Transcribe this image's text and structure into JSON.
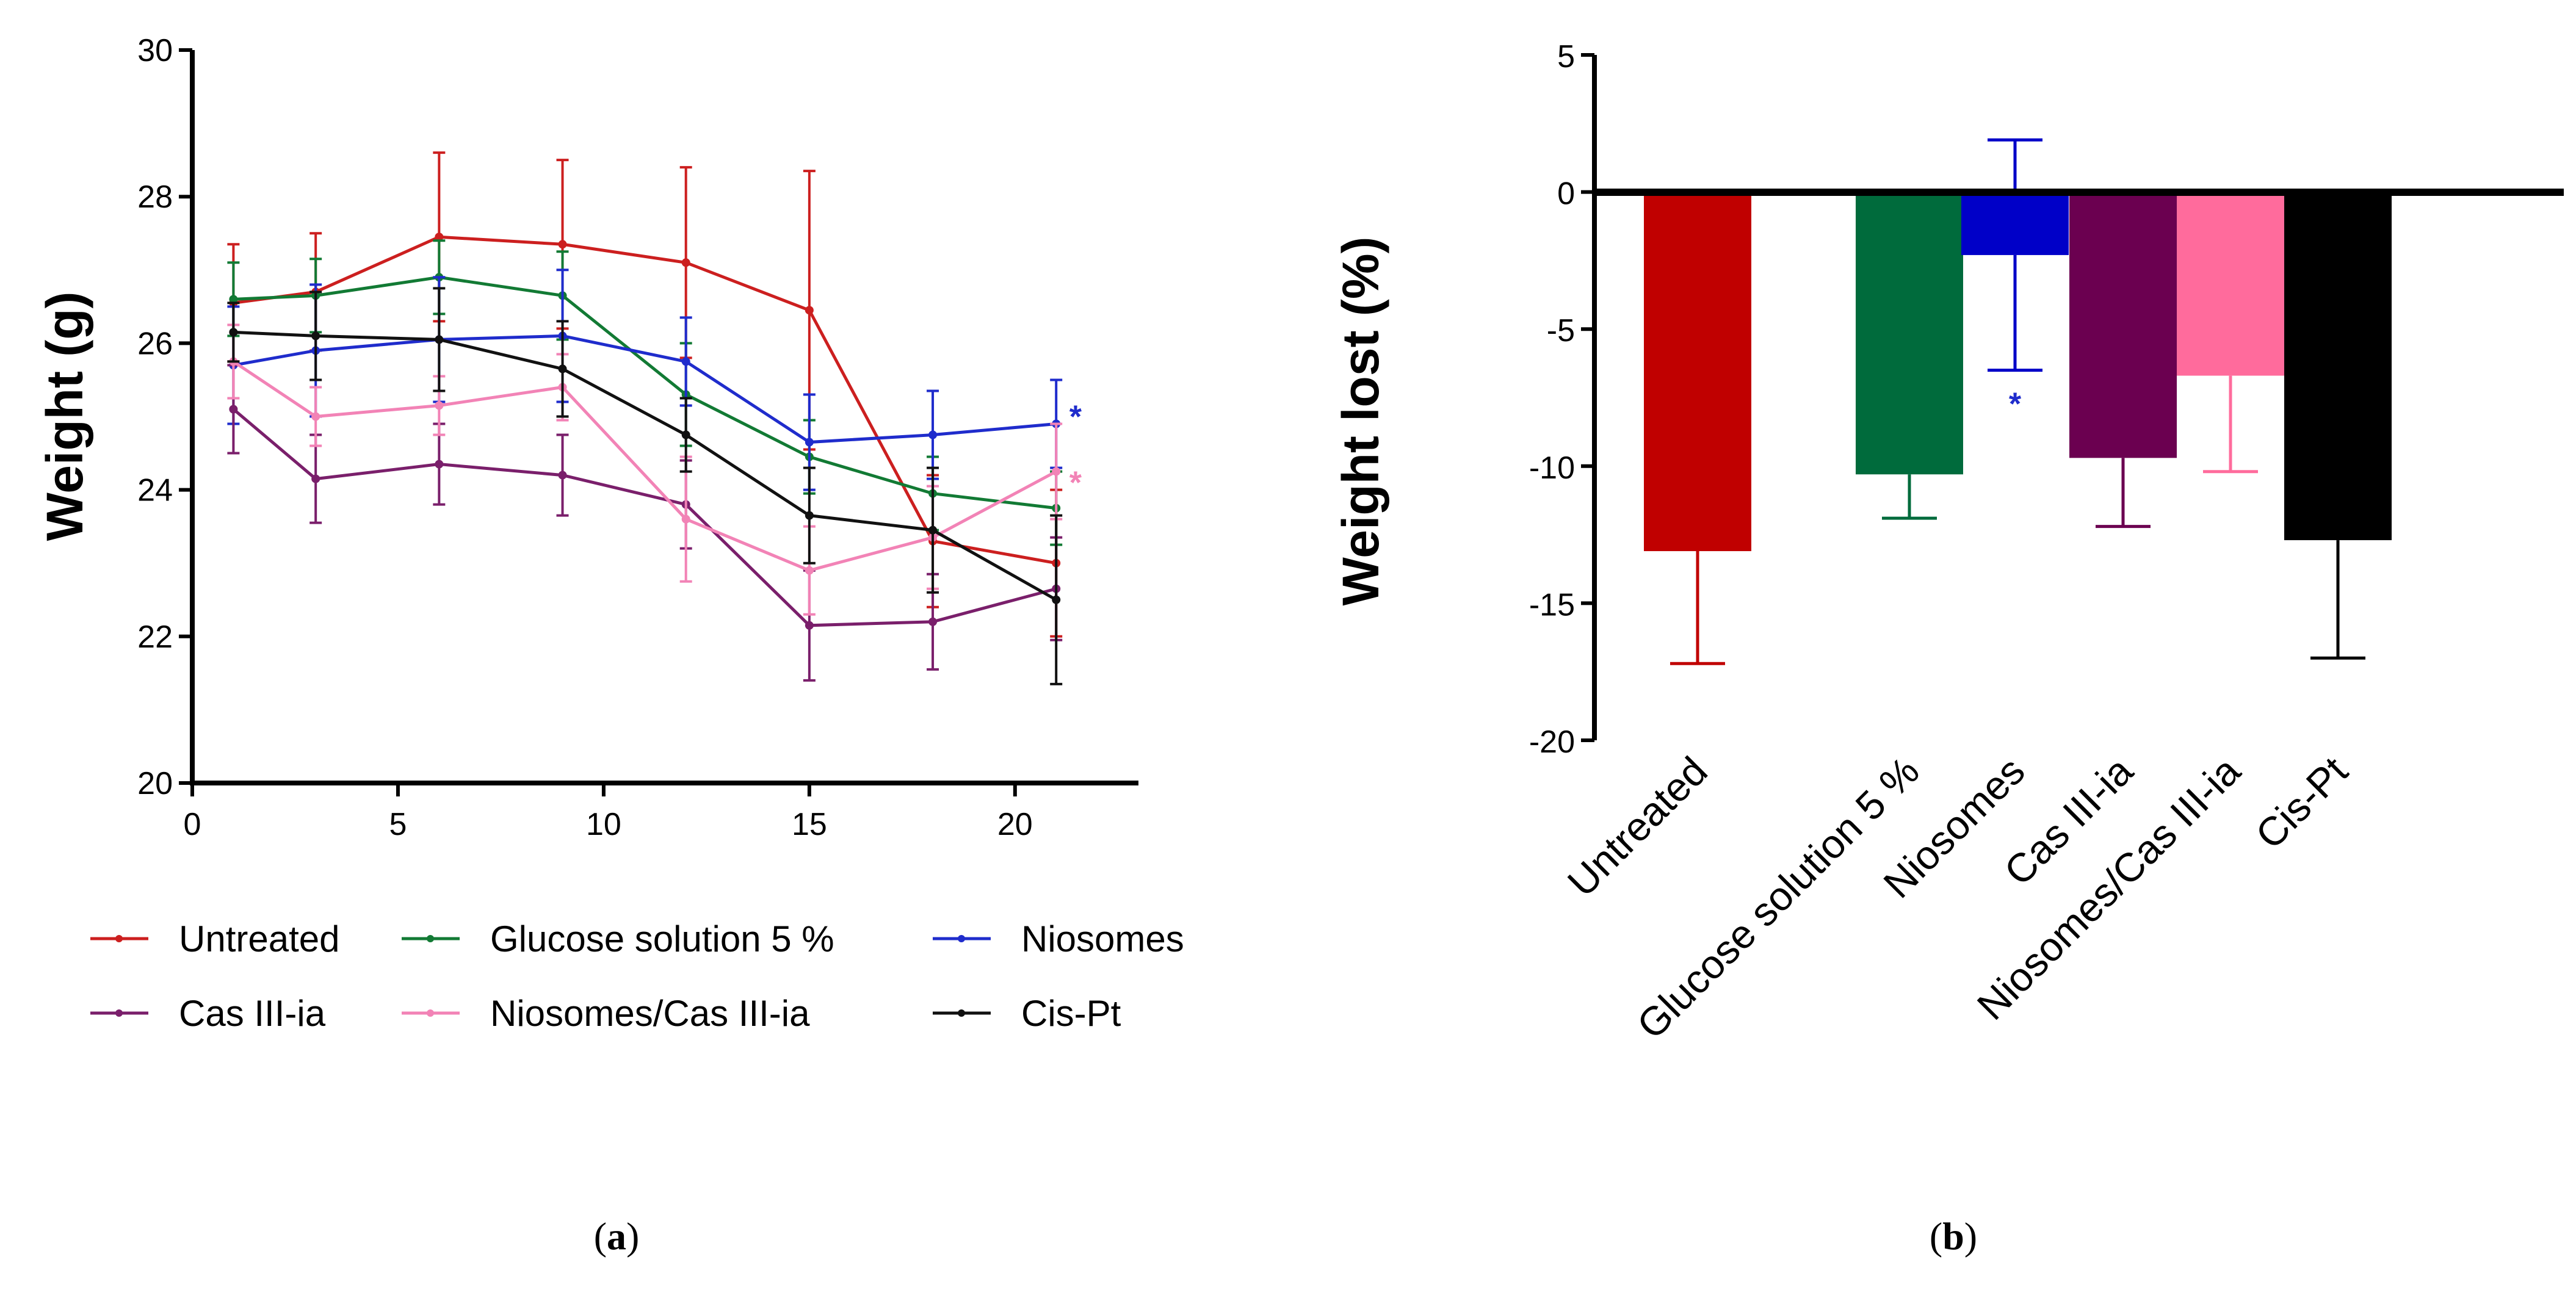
{
  "chart_data": [
    {
      "type": "line",
      "panel_label": "(a)",
      "panel_letter": "a",
      "ylabel": "Weight (g)",
      "xlabel": "",
      "xlim": [
        0,
        23
      ],
      "ylim": [
        20,
        30
      ],
      "xticks": [
        0,
        5,
        10,
        15,
        20
      ],
      "yticks": [
        20,
        22,
        24,
        26,
        28,
        30
      ],
      "x": [
        1,
        3,
        6,
        9,
        12,
        15,
        18,
        21
      ],
      "legend_position": "bottom",
      "series": [
        {
          "name": "Untreated",
          "color": "#cc1f1f",
          "values": [
            26.55,
            26.7,
            27.45,
            27.35,
            27.1,
            26.45,
            23.3,
            23.0
          ],
          "errors": [
            0.8,
            0.8,
            1.15,
            1.15,
            1.3,
            1.9,
            0.9,
            1.0
          ]
        },
        {
          "name": "Glucose solution 5 %",
          "color": "#127a34",
          "values": [
            26.6,
            26.65,
            26.9,
            26.65,
            25.3,
            24.45,
            23.95,
            23.75
          ],
          "errors": [
            0.5,
            0.5,
            0.5,
            0.6,
            0.7,
            0.5,
            0.5,
            0.5
          ]
        },
        {
          "name": "Niosomes",
          "color": "#1f2ccc",
          "values": [
            25.7,
            25.9,
            26.05,
            26.1,
            25.75,
            24.65,
            24.75,
            24.9
          ],
          "errors": [
            0.8,
            0.9,
            0.85,
            0.9,
            0.6,
            0.65,
            0.6,
            0.6
          ]
        },
        {
          "name": "Cas III-ia",
          "color": "#7a1f6b",
          "values": [
            25.1,
            24.15,
            24.35,
            24.2,
            23.8,
            22.15,
            22.2,
            22.65
          ],
          "errors": [
            0.6,
            0.6,
            0.55,
            0.55,
            0.6,
            0.75,
            0.65,
            0.7
          ]
        },
        {
          "name": "Niosomes/Cas III-ia",
          "color": "#f283b6",
          "values": [
            25.75,
            25.0,
            25.15,
            25.4,
            23.6,
            22.9,
            23.35,
            24.25
          ],
          "errors": [
            0.5,
            0.4,
            0.4,
            0.45,
            0.85,
            0.6,
            0.7,
            0.65
          ]
        },
        {
          "name": "Cis-Pt",
          "color": "#111111",
          "values": [
            26.15,
            26.1,
            26.05,
            25.65,
            24.75,
            23.65,
            23.45,
            22.5
          ],
          "errors": [
            0.4,
            0.6,
            0.7,
            0.65,
            0.5,
            0.65,
            0.85,
            1.15
          ]
        }
      ],
      "annotations": [
        {
          "text": "*",
          "series": "Niosomes",
          "x": 21.2,
          "y": 25.1,
          "color": "#1f2ccc"
        },
        {
          "text": "*",
          "series": "Niosomes/Cas III-ia",
          "x": 21.2,
          "y": 24.2,
          "color": "#f283b6"
        }
      ]
    },
    {
      "type": "bar",
      "panel_label": "(b)",
      "panel_letter": "b",
      "ylabel": "Weight lost (%)",
      "xlabel": "",
      "ylim": [
        -20,
        5
      ],
      "yticks": [
        5,
        0,
        -5,
        -10,
        -15,
        -20
      ],
      "categories": [
        "Untreated",
        "Glucose solution 5 %",
        "Niosomes",
        "Cas III-ia",
        "Niosomes/Cas III-ia",
        "Cis-Pt"
      ],
      "values": [
        -13.1,
        -10.3,
        -2.3,
        -9.7,
        -6.7,
        -12.7
      ],
      "errors": [
        4.1,
        1.6,
        4.2,
        2.5,
        3.5,
        4.3
      ],
      "colors": [
        "#c00000",
        "#006b3c",
        "#0000c8",
        "#6b0050",
        "#ff6b9c",
        "#000000"
      ],
      "annotations": [
        {
          "text": "*",
          "category": "Niosomes",
          "y": -7.5,
          "color": "#1f2ccc"
        }
      ]
    }
  ]
}
